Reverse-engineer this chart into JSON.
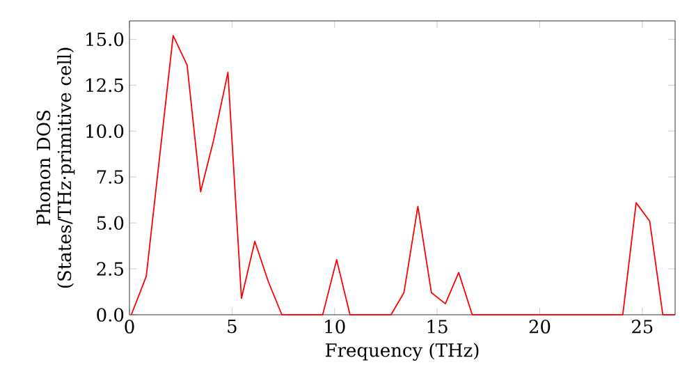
{
  "chart_data": {
    "type": "line",
    "xlabel": "Frequency (THz)",
    "ylabel": "Phonon DOS (States/THz·primitive cell)",
    "x": [
      0.09,
      0.82,
      2.13,
      2.81,
      3.47,
      4.1,
      4.8,
      5.46,
      6.11,
      6.77,
      7.43,
      9.42,
      10.1,
      10.75,
      12.75,
      13.38,
      14.06,
      14.72,
      15.4,
      16.05,
      16.71,
      24.05,
      24.7,
      25.36,
      26.0,
      26.6
    ],
    "series": [
      {
        "color": "#ff0000",
        "values": [
          0,
          2.1,
          15.2,
          13.6,
          6.7,
          9.5,
          13.2,
          0.9,
          4.0,
          1.8,
          0,
          0,
          3.0,
          0,
          0,
          1.2,
          5.9,
          1.2,
          0.6,
          2.3,
          0,
          0,
          6.1,
          5.1,
          0,
          0
        ]
      }
    ],
    "xlim": [
      0,
      26.6
    ],
    "ylim": [
      0,
      16
    ],
    "xticks": [
      0,
      5,
      10,
      15,
      20,
      25
    ],
    "yticks": [
      {
        "value": 0,
        "label": "0.0"
      },
      {
        "value": 2.5,
        "label": "2.5"
      },
      {
        "value": 5,
        "label": "5.0"
      },
      {
        "value": 7.5,
        "label": "7.5"
      },
      {
        "value": 10,
        "label": "10.0"
      },
      {
        "value": 12.5,
        "label": "12.5"
      },
      {
        "value": 15,
        "label": "15.0"
      }
    ]
  }
}
